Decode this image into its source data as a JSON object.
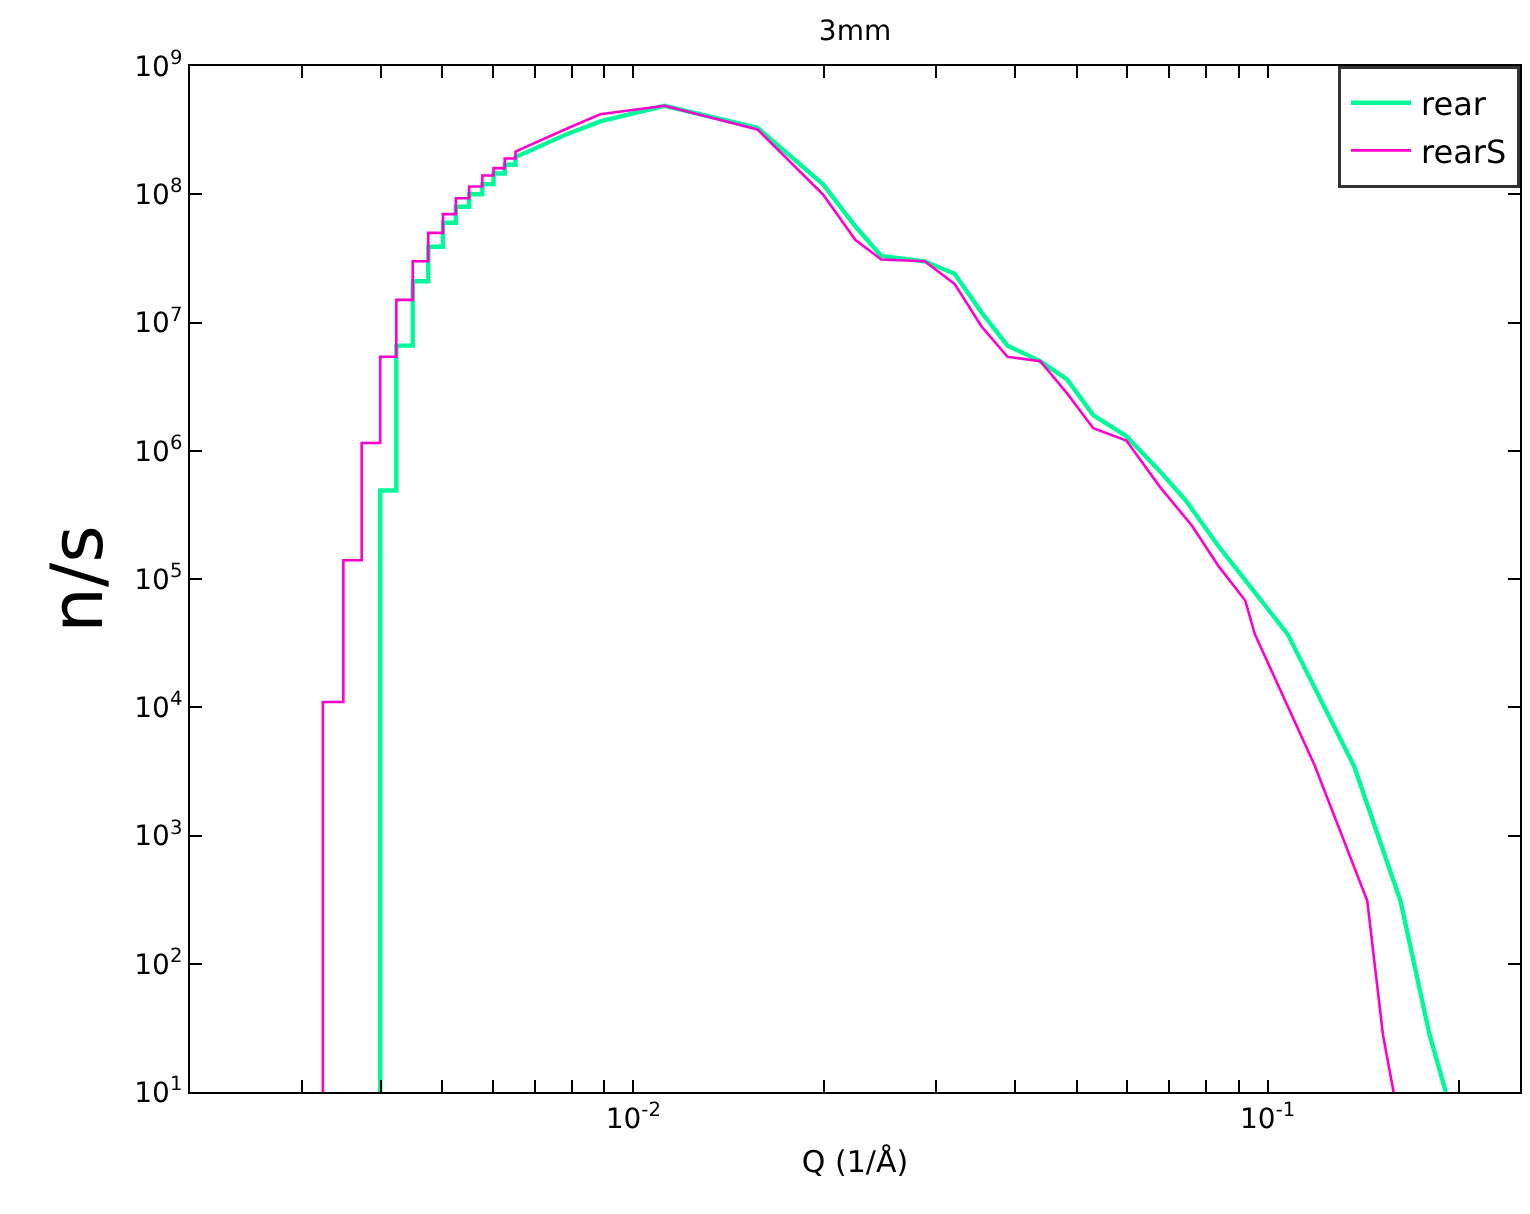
{
  "chart_data": {
    "type": "line",
    "title": "3mm",
    "xlabel": "Q (1/Å)",
    "ylabel": "n/s",
    "log": "xy",
    "grid": false,
    "legend": "top right",
    "marker": "none",
    "line_style": "solid",
    "xlim": [
      0.002,
      0.25
    ],
    "ylim": [
      10,
      1000000000
    ],
    "xticks": [
      {
        "value": 0.002,
        "label": null
      },
      {
        "value": 0.003,
        "label": null
      },
      {
        "value": 0.004,
        "label": null
      },
      {
        "value": 0.005,
        "label": null
      },
      {
        "value": 0.006,
        "label": null
      },
      {
        "value": 0.007,
        "label": null
      },
      {
        "value": 0.008,
        "label": null
      },
      {
        "value": 0.009,
        "label": null
      },
      {
        "value": 0.01,
        "label": "10$^{-2}$"
      },
      {
        "value": 0.02,
        "label": null
      },
      {
        "value": 0.03,
        "label": null
      },
      {
        "value": 0.04,
        "label": null
      },
      {
        "value": 0.05,
        "label": null
      },
      {
        "value": 0.06,
        "label": null
      },
      {
        "value": 0.07,
        "label": null
      },
      {
        "value": 0.08,
        "label": null
      },
      {
        "value": 0.09,
        "label": null
      },
      {
        "value": 0.1,
        "label": "10$^{-1}$"
      },
      {
        "value": 0.2,
        "label": null
      }
    ],
    "yticks": [
      {
        "value": 10,
        "label": "10$^{1}$"
      },
      {
        "value": 100,
        "label": "10$^{2}$"
      },
      {
        "value": 1000,
        "label": "10$^{3}$"
      },
      {
        "value": 10000,
        "label": "10$^{4}$"
      },
      {
        "value": 100000,
        "label": "10$^{5}$"
      },
      {
        "value": 1000000,
        "label": "10$^{6}$"
      },
      {
        "value": 10000000,
        "label": "10$^{7}$"
      },
      {
        "value": 100000000,
        "label": "10$^{8}$"
      },
      {
        "value": 1000000000,
        "label": "10$^{9}$"
      }
    ],
    "series": [
      {
        "name": "rear",
        "color": "#00fa9a",
        "x": [
          0.00399,
          0.00399,
          0.00423,
          0.00423,
          0.00449,
          0.00449,
          0.00475,
          0.00475,
          0.00501,
          0.00501,
          0.00525,
          0.00525,
          0.00551,
          0.00551,
          0.00578,
          0.00578,
          0.00602,
          0.00602,
          0.00627,
          0.00627,
          0.00652,
          0.00652,
          0.0078,
          0.00887,
          0.0112,
          0.0157,
          0.0199,
          0.0224,
          0.0246,
          0.0288,
          0.0321,
          0.0354,
          0.0389,
          0.0438,
          0.0483,
          0.0531,
          0.0599,
          0.0675,
          0.0743,
          0.0837,
          0.0922,
          0.1076,
          0.1368,
          0.162,
          0.18,
          0.191
        ],
        "values": [
          10,
          490000,
          490000,
          6600000,
          6600000,
          21000000,
          21000000,
          39000000,
          39000000,
          60000000,
          60000000,
          80000000,
          80000000,
          100000000,
          100000000,
          120000000,
          120000000,
          145000000,
          145000000,
          170000000,
          170000000,
          195000000,
          290000000,
          370000000,
          490000000,
          330000000,
          120000000,
          56000000,
          33000000,
          30000000,
          24000000,
          12000000,
          6600000,
          5000000,
          3600000,
          1900000,
          1300000,
          700000,
          410000,
          180000,
          98000,
          37000,
          3500,
          310,
          28,
          10
        ]
      },
      {
        "name": "rearS",
        "color": "#ff00cc",
        "x": [
          0.00324,
          0.00324,
          0.00349,
          0.00349,
          0.00373,
          0.00373,
          0.00399,
          0.00399,
          0.00423,
          0.00423,
          0.00449,
          0.00449,
          0.00475,
          0.00475,
          0.00501,
          0.00501,
          0.00525,
          0.00525,
          0.00551,
          0.00551,
          0.00578,
          0.00578,
          0.00602,
          0.00602,
          0.00627,
          0.00627,
          0.00652,
          0.00652,
          0.0078,
          0.00887,
          0.0112,
          0.0157,
          0.0199,
          0.0224,
          0.0246,
          0.0288,
          0.0321,
          0.0354,
          0.0389,
          0.0438,
          0.0483,
          0.0531,
          0.0599,
          0.0675,
          0.076,
          0.0837,
          0.0922,
          0.0955,
          0.1187,
          0.1436,
          0.152,
          0.158
        ],
        "values": [
          10,
          11000,
          11000,
          140000,
          140000,
          1150000,
          1150000,
          5400000,
          5400000,
          15000000,
          15000000,
          30000000,
          30000000,
          50000000,
          50000000,
          70000000,
          70000000,
          93000000,
          93000000,
          115000000,
          115000000,
          140000000,
          140000000,
          160000000,
          160000000,
          190000000,
          190000000,
          215000000,
          320000000,
          420000000,
          490000000,
          320000000,
          100000000,
          44000000,
          31000000,
          30000000,
          20000000,
          9300000,
          5400000,
          5000000,
          2800000,
          1500000,
          1200000,
          530000,
          260000,
          126000,
          68000,
          37000,
          3500,
          310,
          28,
          10
        ]
      }
    ]
  }
}
